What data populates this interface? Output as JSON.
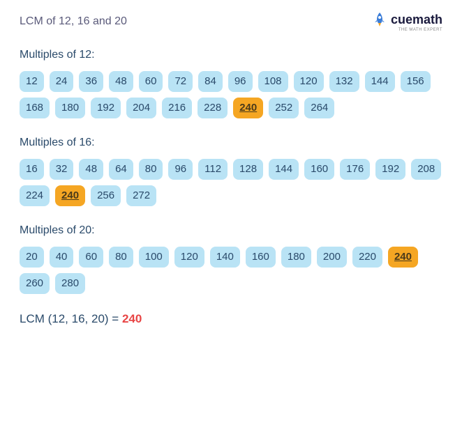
{
  "title": "LCM of 12, 16 and 20",
  "logo": {
    "text": "cuemath",
    "tagline": "THE MATH EXPERT"
  },
  "sections": [
    {
      "title": "Multiples of 12:",
      "multiples": [
        12,
        24,
        36,
        48,
        60,
        72,
        84,
        96,
        108,
        120,
        132,
        144,
        156,
        168,
        180,
        192,
        204,
        216,
        228,
        240,
        252,
        264
      ],
      "highlight": 240
    },
    {
      "title": "Multiples of 16:",
      "multiples": [
        16,
        32,
        48,
        64,
        80,
        96,
        112,
        128,
        144,
        160,
        176,
        192,
        208,
        224,
        240,
        256,
        272
      ],
      "highlight": 240
    },
    {
      "title": "Multiples of 20:",
      "multiples": [
        20,
        40,
        60,
        80,
        100,
        120,
        140,
        160,
        180,
        200,
        220,
        240,
        260,
        280
      ],
      "highlight": 240
    }
  ],
  "result": {
    "label": "LCM (12, 16, 20) = ",
    "value": "240"
  },
  "colors": {
    "chip_bg": "#b9e3f5",
    "chip_text": "#2a4a6a",
    "highlight_bg": "#f5a623",
    "highlight_text": "#4a3a1a",
    "title_text": "#5a5a7a",
    "section_title": "#2a4a6a",
    "result_value": "#e84545",
    "background": "#ffffff"
  },
  "fonts": {
    "title_size": 16,
    "section_title_size": 16,
    "chip_size": 15,
    "result_size": 17
  }
}
